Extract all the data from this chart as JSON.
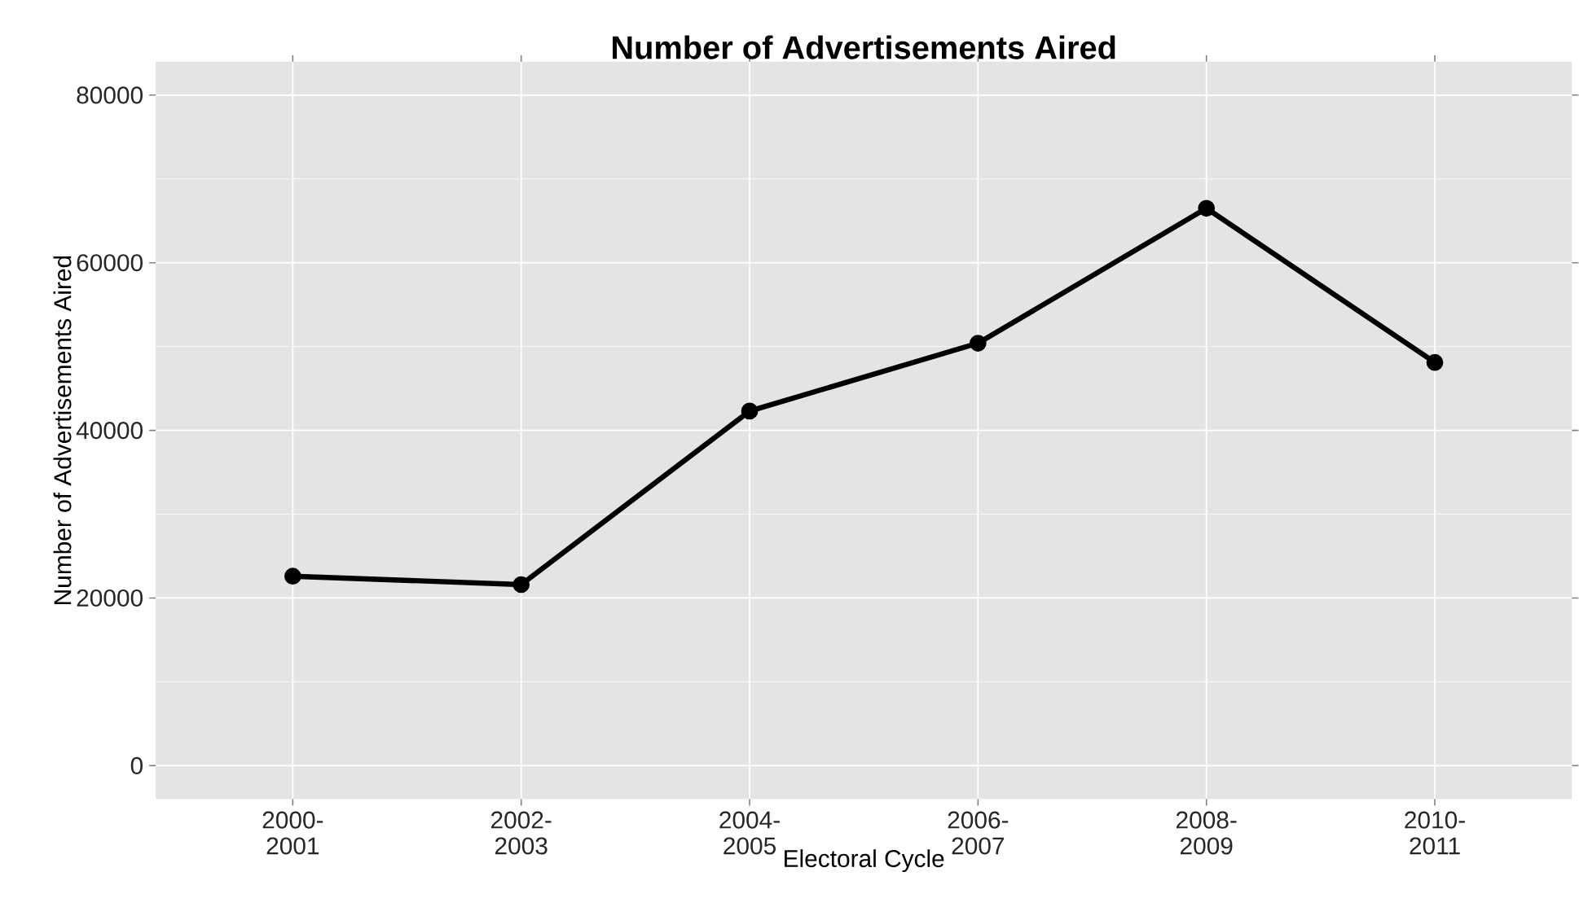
{
  "chart_data": {
    "type": "line",
    "title": "Number of Advertisements Aired",
    "xlabel": "Electoral Cycle",
    "ylabel": "Number of Advertisements Aired",
    "categories": [
      "2000-2001",
      "2002-2003",
      "2004-2005",
      "2006-2007",
      "2008-2009",
      "2010-2011"
    ],
    "series": [
      {
        "color": "#000000",
        "values": [
          22600,
          21600,
          42300,
          50400,
          66500,
          48100
        ]
      }
    ],
    "ylim": [
      -4000,
      84000
    ],
    "yticks": [
      0,
      20000,
      40000,
      60000,
      80000
    ],
    "grid": true,
    "marker": "circle",
    "line_style": "solid"
  }
}
